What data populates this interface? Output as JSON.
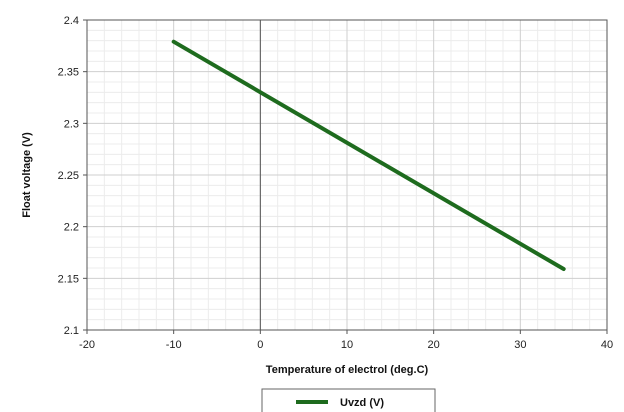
{
  "chart_data": {
    "type": "line",
    "title": "",
    "xlabel": "Temperature of electrol (deg.C)",
    "ylabel": "Float voltage (V)",
    "xlim": [
      -20,
      40
    ],
    "ylim": [
      2.1,
      2.4
    ],
    "xticks": [
      "-20",
      "-10",
      "0",
      "10",
      "20",
      "30",
      "40"
    ],
    "yticks": [
      "2.1",
      "2.15",
      "2.2",
      "2.25",
      "2.3",
      "2.35",
      "2.4"
    ],
    "grid": true,
    "legend_position": "bottom-center",
    "series": [
      {
        "name": "Uvzd (V)",
        "color": "#1e6b1e",
        "x": [
          -10,
          35
        ],
        "y": [
          2.379,
          2.159
        ]
      }
    ]
  }
}
